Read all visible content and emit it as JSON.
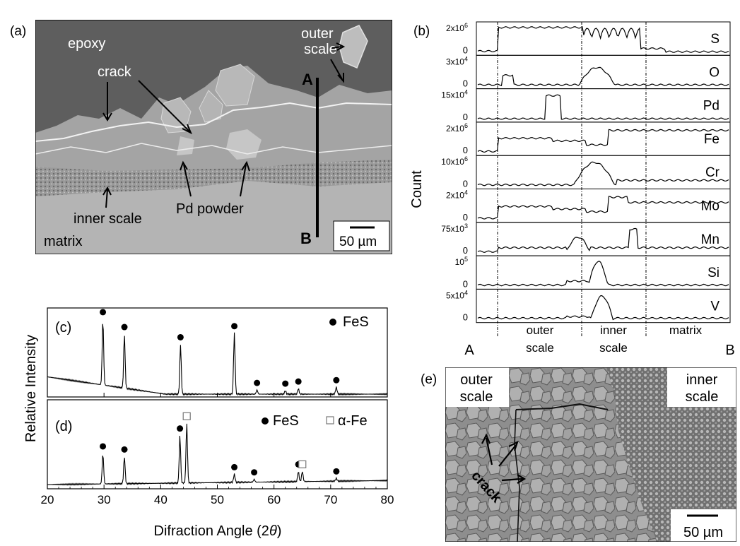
{
  "panel_a": {
    "label": "(a)",
    "annotations": {
      "epoxy": "epoxy",
      "outer_scale_1": "outer",
      "outer_scale_2": "scale",
      "crack": "crack",
      "pd_powder": "Pd powder",
      "inner_scale": "inner scale",
      "matrix": "matrix",
      "line_start": "A",
      "line_end": "B",
      "scale_bar": "50 µm"
    }
  },
  "panel_b": {
    "label": "(b)",
    "ylabel": "Count",
    "start": "A",
    "end": "B",
    "regions": [
      {
        "line1": "outer",
        "line2": "scale"
      },
      {
        "line1": "inner",
        "line2": "scale"
      },
      {
        "line1": "matrix",
        "line2": ""
      }
    ],
    "elements": [
      {
        "name": "S",
        "ymax_label": "2x10",
        "exp": "6",
        "zero": "0"
      },
      {
        "name": "O",
        "ymax_label": "3x10",
        "exp": "4",
        "zero": "0"
      },
      {
        "name": "Pd",
        "ymax_label": "15x10",
        "exp": "4",
        "zero": "0"
      },
      {
        "name": "Fe",
        "ymax_label": "2x10",
        "exp": "6",
        "zero": "0"
      },
      {
        "name": "Cr",
        "ymax_label": "10x10",
        "exp": "6",
        "zero": "0"
      },
      {
        "name": "Mo",
        "ymax_label": "2x10",
        "exp": "4",
        "zero": "0"
      },
      {
        "name": "Mn",
        "ymax_label": "75x10",
        "exp": "3",
        "zero": "0"
      },
      {
        "name": "Si",
        "ymax_label": "10",
        "exp": "5",
        "zero": "0"
      },
      {
        "name": "V",
        "ymax_label": "5x10",
        "exp": "4",
        "zero": "0"
      }
    ]
  },
  "xrd": {
    "ylabel": "Relative Intensity",
    "xlabel_main": "Difraction Angle (2",
    "xlabel_symbol": "θ",
    "xlabel_close": ")",
    "xticks": [
      "20",
      "30",
      "40",
      "50",
      "60",
      "70",
      "80"
    ]
  },
  "panel_c": {
    "label": "(c)",
    "legend": "FeS"
  },
  "panel_d": {
    "label": "(d)",
    "legend_fes": "FeS",
    "legend_alpha": "α-Fe"
  },
  "panel_e": {
    "label": "(e)",
    "outer_1": "outer",
    "outer_2": "scale",
    "inner_1": "inner",
    "inner_2": "scale",
    "crack": "crack",
    "scale_bar": "50 µm"
  },
  "chart_data": [
    {
      "type": "line",
      "title": "(c)",
      "xlabel": "Difraction Angle (2θ)",
      "ylabel": "Relative Intensity",
      "xlim": [
        20,
        80
      ],
      "peaks": [
        {
          "x": 29.8,
          "height": 0.95,
          "phase": "FeS"
        },
        {
          "x": 33.6,
          "height": 0.78,
          "phase": "FeS"
        },
        {
          "x": 43.5,
          "height": 0.72,
          "phase": "FeS"
        },
        {
          "x": 53.0,
          "height": 0.88,
          "phase": "FeS"
        },
        {
          "x": 57.0,
          "height": 0.06,
          "phase": "FeS"
        },
        {
          "x": 62.0,
          "height": 0.05,
          "phase": "FeS"
        },
        {
          "x": 64.3,
          "height": 0.08,
          "phase": "FeS"
        },
        {
          "x": 71.0,
          "height": 0.1,
          "phase": "FeS"
        }
      ]
    },
    {
      "type": "line",
      "title": "(d)",
      "xlabel": "Difraction Angle (2θ)",
      "ylabel": "Relative Intensity",
      "xlim": [
        20,
        80
      ],
      "peaks": [
        {
          "x": 29.8,
          "height": 0.45,
          "phase": "FeS"
        },
        {
          "x": 33.6,
          "height": 0.4,
          "phase": "FeS"
        },
        {
          "x": 43.4,
          "height": 0.7,
          "phase": "FeS"
        },
        {
          "x": 44.6,
          "height": 0.88,
          "phase": "α-Fe"
        },
        {
          "x": 53.0,
          "height": 0.12,
          "phase": "FeS"
        },
        {
          "x": 56.5,
          "height": 0.04,
          "phase": "FeS"
        },
        {
          "x": 64.3,
          "height": 0.15,
          "phase": "FeS"
        },
        {
          "x": 65.0,
          "height": 0.15,
          "phase": "α-Fe"
        },
        {
          "x": 71.0,
          "height": 0.04,
          "phase": "FeS"
        }
      ]
    }
  ]
}
